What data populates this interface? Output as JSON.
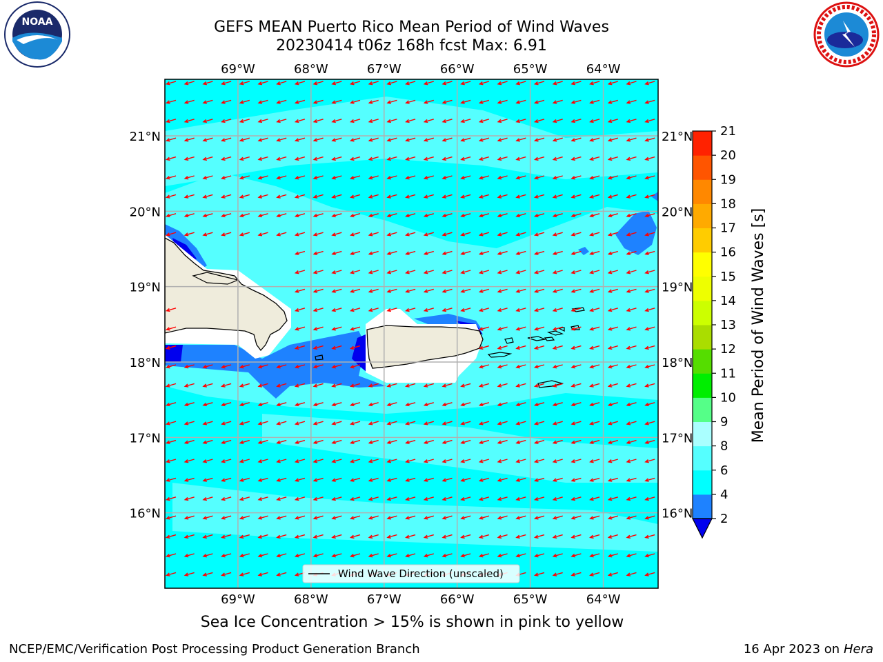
{
  "title": {
    "line1": "GEFS MEAN Puerto Rico Mean Period of Wind Waves",
    "line2": "20230414 t06z 168h fcst   Max: 6.91"
  },
  "logos": {
    "left": "noaa-logo-icon",
    "right": "national-weather-service-logo-icon"
  },
  "map": {
    "lon_ticks": [
      "69°W",
      "68°W",
      "67°W",
      "66°W",
      "65°W",
      "64°W"
    ],
    "lat_ticks": [
      "21°N",
      "20°N",
      "19°N",
      "18°N",
      "17°N",
      "16°N"
    ],
    "legend_label": "Wind Wave Direction (unscaled)",
    "arrow_color": "#ff0000",
    "land_color": "#efecdc",
    "wind_direction": "from east-northeast"
  },
  "colorbar": {
    "label": "Mean Period of Wind Waves [s]",
    "ticks": [
      "2",
      "4",
      "6",
      "8",
      "9",
      "10",
      "11",
      "12",
      "13",
      "14",
      "15",
      "16",
      "17",
      "18",
      "19",
      "20",
      "21"
    ],
    "colors": [
      "#0000ee",
      "#1e82ff",
      "#00ffff",
      "#55ffff",
      "#aaffff",
      "#55ff88",
      "#00ee00",
      "#55dd00",
      "#aadd00",
      "#ccff00",
      "#eeff00",
      "#ffff00",
      "#ffcc00",
      "#ffaa00",
      "#ff8800",
      "#ff5500",
      "#ff2200",
      "#ff0000"
    ]
  },
  "chart_data": {
    "type": "heatmap",
    "title": "GEFS MEAN Puerto Rico Mean Period of Wind Waves",
    "subtitle": "20230414 t06z 168h fcst   Max: 6.91",
    "xlim": [
      -70.0,
      -63.25
    ],
    "ylim": [
      15.0,
      21.75
    ],
    "levels": [
      2,
      4,
      6,
      8,
      9,
      10,
      11,
      12,
      13,
      14,
      15,
      16,
      17,
      18,
      19,
      20,
      21
    ],
    "max": 6.91,
    "colorbar_label": "Mean Period of Wind Waves [s]",
    "legend": "Wind Wave Direction (unscaled)"
  },
  "notes": {
    "sea_ice": "Sea Ice Concentration > 15% is shown in pink to yellow"
  },
  "footer": {
    "left": "NCEP/EMC/Verification Post Processing Product Generation Branch",
    "date": "16 Apr 2023 on ",
    "host": "Hera"
  }
}
